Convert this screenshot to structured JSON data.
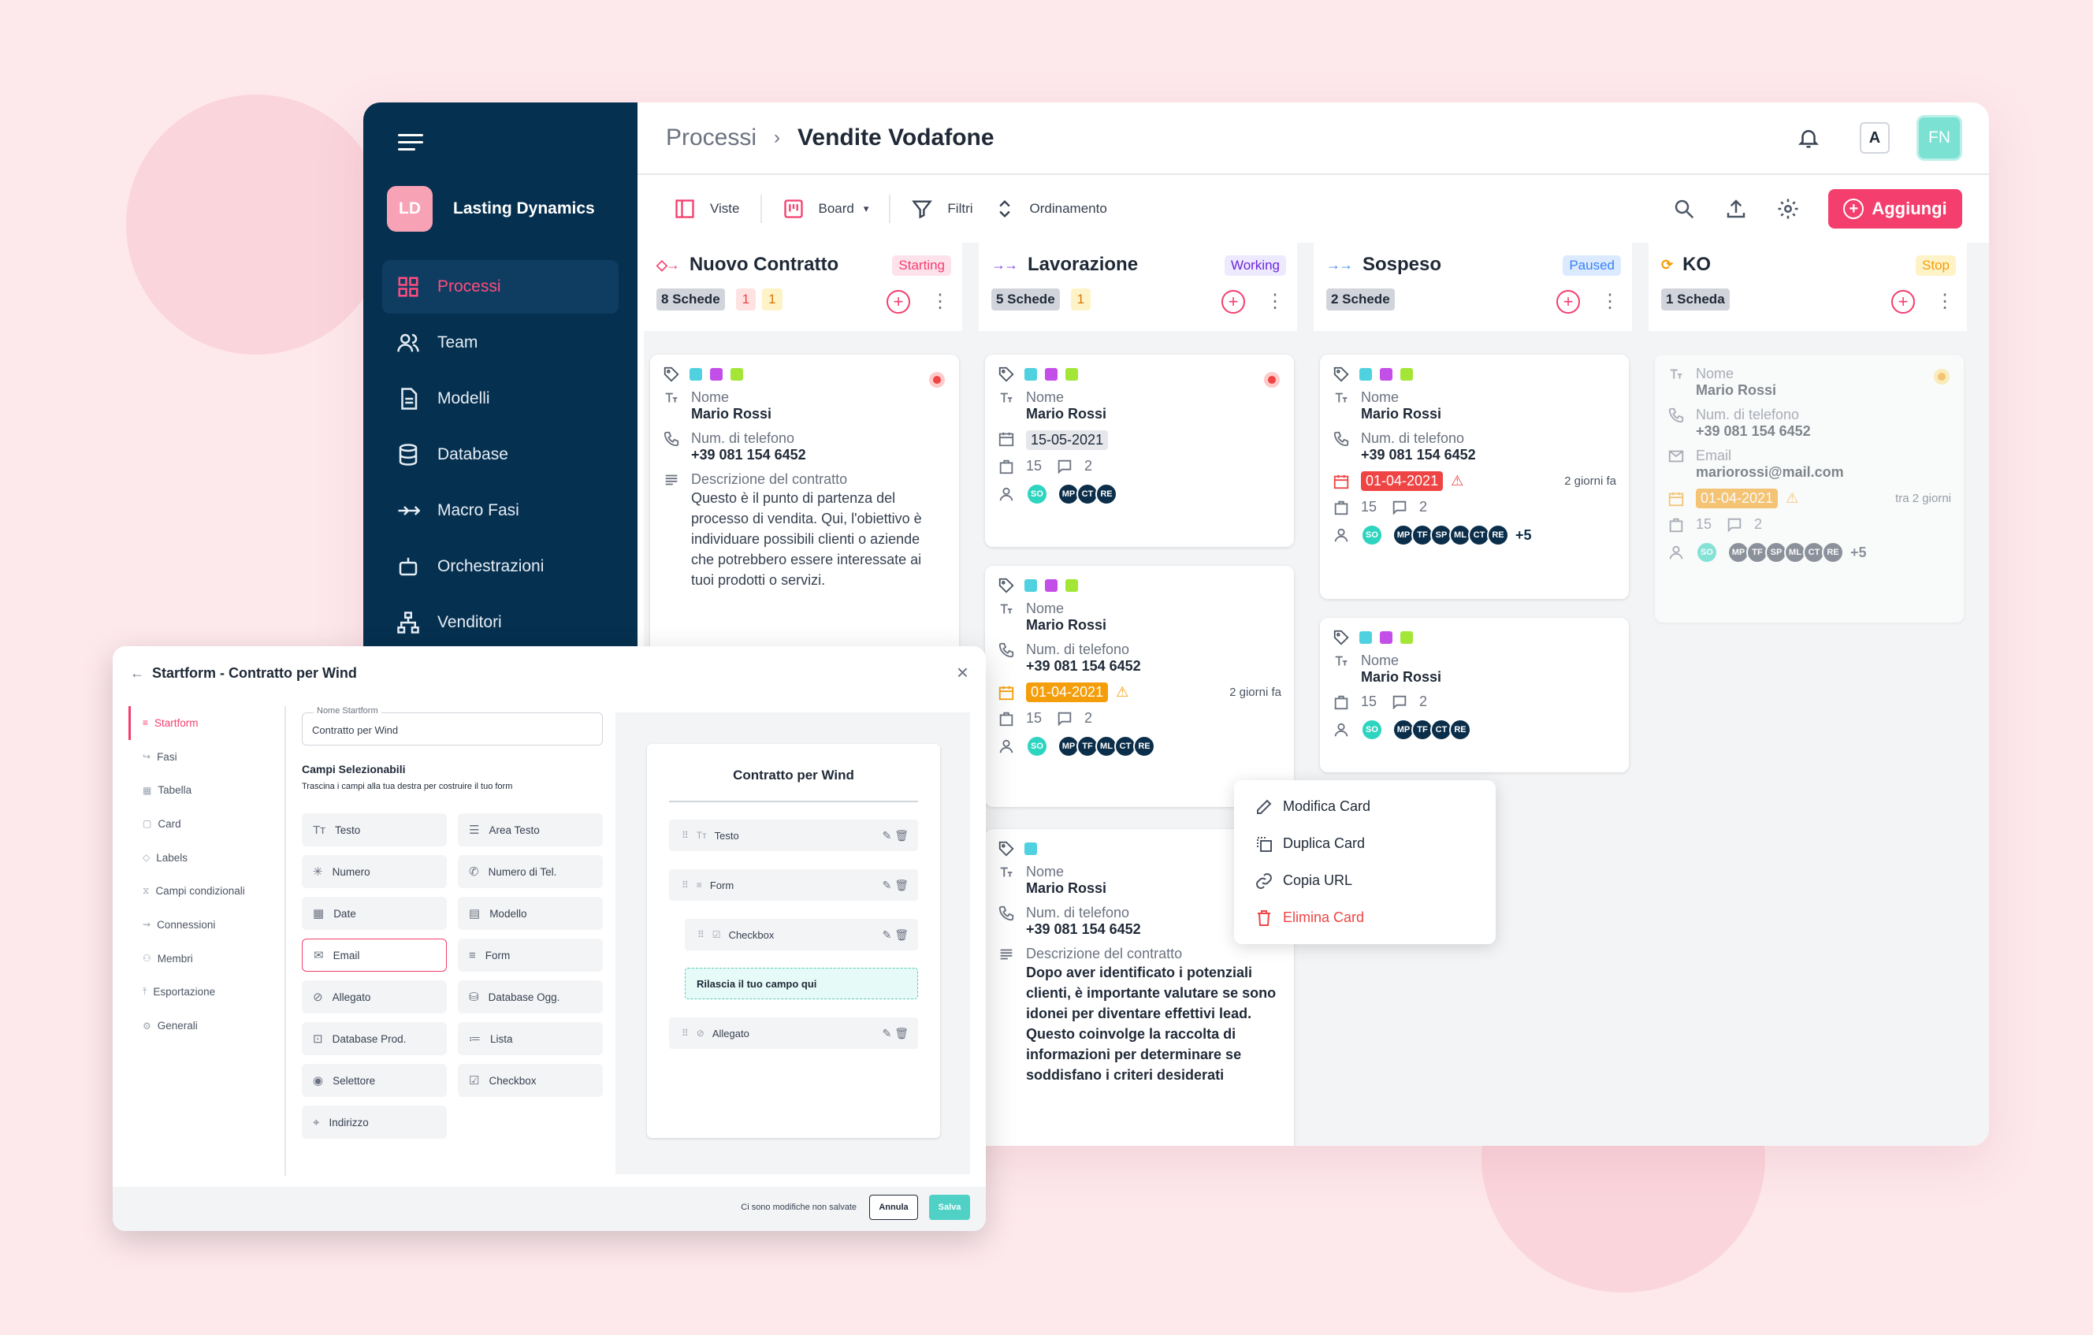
{
  "sidebar": {
    "org_initials": "LD",
    "org_name": "Lasting Dynamics",
    "items": [
      {
        "label": "Processi",
        "icon": "grid-icon"
      },
      {
        "label": "Team",
        "icon": "users-icon"
      },
      {
        "label": "Modelli",
        "icon": "document-icon"
      },
      {
        "label": "Database",
        "icon": "database-icon"
      },
      {
        "label": "Macro Fasi",
        "icon": "double-arrow-icon"
      },
      {
        "label": "Orchestrazioni",
        "icon": "robot-icon"
      },
      {
        "label": "Venditori",
        "icon": "hierarchy-icon"
      }
    ]
  },
  "header": {
    "breadcrumb_root": "Processi",
    "breadcrumb_current": "Vendite Vodafone",
    "avatar_a": "A",
    "avatar_user": "FN"
  },
  "toolbar": {
    "views": "Viste",
    "board": "Board",
    "filters": "Filtri",
    "sort": "Ordinamento",
    "add": "Aggiungi"
  },
  "colors": {
    "accent": "#f43f6e",
    "sidebar": "#06304f",
    "teal": "#4fd1c5"
  },
  "columns": [
    {
      "title": "Nuovo Contratto",
      "status": "Starting",
      "count": "8 Schede",
      "badges": [
        "1",
        "1"
      ]
    },
    {
      "title": "Lavorazione",
      "status": "Working",
      "count": "5 Schede",
      "badges": [
        "1"
      ]
    },
    {
      "title": "Sospeso",
      "status": "Paused",
      "count": "2 Schede",
      "badges": []
    },
    {
      "title": "KO",
      "status": "Stop",
      "count": "1 Scheda",
      "badges": []
    }
  ],
  "labels": {
    "nome": "Nome",
    "tel": "Num. di telefono",
    "desc": "Descrizione del contratto",
    "email": "Email"
  },
  "card_values": {
    "name": "Mario Rossi",
    "phone": "+39 081 154 6452",
    "email": "mariorossi@mail.com",
    "desc1": "Questo è il punto di partenza del processo di vendita. Qui, l'obiettivo è individuare possibili clienti o aziende che potrebbero essere interessate ai tuoi prodotti o servizi.",
    "desc2": "Dopo aver identificato i potenziali clienti, è importante valutare se sono idonei per diventare effettivi lead. Questo coinvolge la raccolta di informazioni per determinare se soddisfano i criteri desiderati",
    "date_grey": "15-05-2021",
    "date_due": "01-04-2021",
    "ago": "2 giorni fa",
    "in": "tra 2 giorni",
    "n15": "15",
    "n2": "2",
    "more": "+5"
  },
  "avatars": [
    "SO",
    "MP",
    "TF",
    "SP",
    "ML",
    "CT",
    "RE"
  ],
  "context_menu": [
    "Modifica Card",
    "Duplica Card",
    "Copia URL",
    "Elimina Card"
  ],
  "modal": {
    "title": "Startform - Contratto per Wind",
    "nav": [
      "Startform",
      "Fasi",
      "Tabella",
      "Card",
      "Labels",
      "Campi condizionali",
      "Connessioni",
      "Membri",
      "Esportazione",
      "Generali"
    ],
    "name_label": "Nome Startform",
    "name_value": "Contratto per Wind",
    "fields_title": "Campi Selezionabili",
    "fields_sub": "Trascina i campi alla tua destra per costruire il tuo form",
    "fields": [
      "Testo",
      "Area Testo",
      "Numero",
      "Numero di Tel.",
      "Date",
      "Modello",
      "Email",
      "Form",
      "Allegato",
      "Database Ogg.",
      "Database Prod.",
      "Lista",
      "Selettore",
      "Checkbox",
      "Indirizzo"
    ],
    "form_title": "Contratto per Wind",
    "form_rows": [
      "Testo",
      "Form",
      "Checkbox",
      "Allegato"
    ],
    "drop_text": "Rilascia il tuo campo qui",
    "unsaved": "Ci sono modifiche non salvate",
    "cancel": "Annula",
    "save": "Salva"
  }
}
